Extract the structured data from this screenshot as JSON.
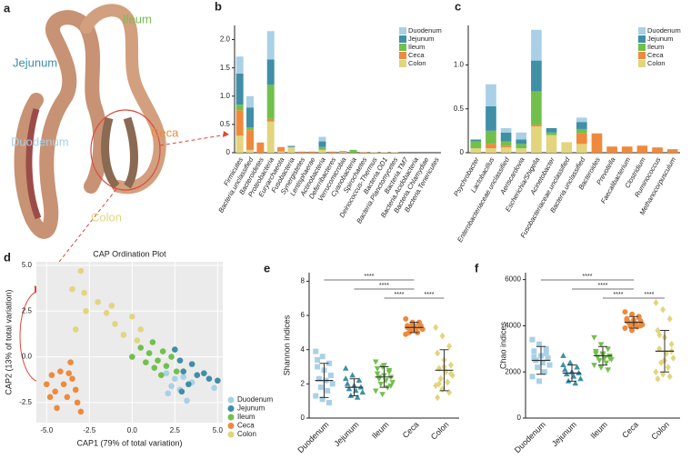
{
  "photo": {
    "panel": "a",
    "ileum": "Ileum",
    "jejunum": "Jejunum",
    "ceca": "Ceca",
    "duodenum": "Duodenum",
    "colon": "Colon"
  },
  "chart_data": [
    {
      "type": "stacked-bar",
      "panel": "b",
      "categories": [
        "Firmicutes",
        "Bacteria.unclassified",
        "Bacteroidetes",
        "Proteobacteria",
        "Euryarchaeota",
        "Fusobacteria",
        "Synergistetes",
        "Lentisphaerae",
        "Actinobacteria",
        "Deferribacteres",
        "Verrucomicrobia",
        "Cyanobacteria",
        "Spirochaetes",
        "Deinococcus-Thermus",
        "Bacteria.OD1",
        "Bacteria.Planctomycetes",
        "Bacteria.TM7",
        "Bacteria.Acidobacteria",
        "Bacteria.Chlamydiae",
        "Bacteria.Tenericutes"
      ],
      "series": [
        {
          "name": "Duodenum",
          "color": "#a9d0e6",
          "values": [
            0.3,
            0.2,
            0,
            0.5,
            0,
            0,
            0,
            0,
            0.08,
            0,
            0,
            0,
            0,
            0,
            0,
            0,
            0,
            0,
            0,
            0
          ]
        },
        {
          "name": "Jejunum",
          "color": "#3f8fa6",
          "values": [
            0.55,
            0.35,
            0,
            0.45,
            0,
            0.02,
            0,
            0,
            0.1,
            0,
            0,
            0,
            0,
            0,
            0,
            0,
            0,
            0,
            0,
            0
          ]
        },
        {
          "name": "Ileum",
          "color": "#72c04c",
          "values": [
            0.1,
            0.05,
            0,
            0.6,
            0,
            0,
            0,
            0,
            0.05,
            0,
            0,
            0.05,
            0,
            0,
            0,
            0,
            0,
            0,
            0,
            0
          ]
        },
        {
          "name": "Ceca",
          "color": "#ef8a3c",
          "values": [
            0.45,
            0.35,
            0.18,
            0.05,
            0.08,
            0,
            0.02,
            0.02,
            0,
            0.02,
            0.02,
            0,
            0.01,
            0,
            0,
            0,
            0,
            0,
            0,
            0
          ]
        },
        {
          "name": "Colon",
          "color": "#e2d57e",
          "values": [
            0.3,
            0.05,
            0,
            0.55,
            0.02,
            0.1,
            0,
            0,
            0.05,
            0,
            0.01,
            0,
            0,
            0.01,
            0.01,
            0.01,
            0,
            0,
            0,
            0
          ]
        }
      ],
      "ylim": [
        0,
        2.25
      ],
      "yticks": [
        0,
        0.5,
        {
          "value": 1,
          "label": "1.0"
        },
        1.5,
        {
          "value": 2,
          "label": "2.0"
        }
      ]
    },
    {
      "type": "stacked-bar",
      "panel": "c",
      "categories": [
        "Psychrobacter",
        "Lactobacillus",
        "Enterobacteriaceae.unclassified",
        "Aeriscardovia",
        "Escherichia/Shigella",
        "Acinetobacter",
        "Fusobacteriaceae.unclassified",
        "Bacteria.unclassified",
        "Bacteroides",
        "Prevotella",
        "Faecalibacterium",
        "Clostridium",
        "Ruminococcus",
        "Methanocorpusculum"
      ],
      "series": [
        {
          "name": "Duodenum",
          "color": "#a9d0e6",
          "values": [
            0,
            0.25,
            0.05,
            0.08,
            0.35,
            0,
            0,
            0.05,
            0,
            0,
            0,
            0,
            0,
            0
          ]
        },
        {
          "name": "Jejunum",
          "color": "#3f8fa6",
          "values": [
            0.02,
            0.28,
            0.1,
            0.05,
            0.35,
            0.05,
            0,
            0.08,
            0,
            0,
            0,
            0,
            0,
            0
          ]
        },
        {
          "name": "Ileum",
          "color": "#72c04c",
          "values": [
            0.08,
            0.15,
            0.05,
            0.05,
            0.38,
            0.03,
            0,
            0.05,
            0,
            0,
            0,
            0,
            0,
            0
          ]
        },
        {
          "name": "Ceca",
          "color": "#ef8a3c",
          "values": [
            0,
            0.05,
            0.02,
            0,
            0.02,
            0,
            0,
            0.12,
            0.22,
            0.07,
            0.07,
            0.08,
            0.06,
            0.04
          ]
        },
        {
          "name": "Colon",
          "color": "#e2d57e",
          "values": [
            0.05,
            0.05,
            0.06,
            0.05,
            0.3,
            0.2,
            0.12,
            0.1,
            0,
            0,
            0,
            0,
            0,
            0
          ]
        }
      ],
      "ylim": [
        0,
        1.45
      ],
      "yticks": [
        0,
        0.5,
        {
          "value": 1,
          "label": "1.0"
        }
      ]
    },
    {
      "type": "scatter",
      "panel": "d",
      "title": "CAP Ordination Plot",
      "xlabel": "CAP1 (79% of total variation)",
      "ylabel": "CAP2 (13% of total variation)",
      "series": [
        {
          "name": "Duodenum",
          "color": "#a9d0e6",
          "x": [
            2.0,
            2.3,
            2.5,
            2.8,
            3.2,
            3.5,
            2.1,
            4.8,
            3.0
          ],
          "y": [
            -0.9,
            -1.6,
            -1.2,
            -1.8,
            -2.4,
            -1.4,
            -2.0,
            -1.7,
            -1.1
          ]
        },
        {
          "name": "Jejunum",
          "color": "#3f8fa6",
          "x": [
            2.5,
            2.8,
            3.0,
            3.5,
            3.8,
            4.2,
            4.5,
            5.0,
            3.3,
            2.9
          ],
          "y": [
            0.4,
            -0.2,
            -0.8,
            -0.4,
            -1.0,
            -0.9,
            -1.2,
            -1.3,
            -1.5,
            -1.9
          ]
        },
        {
          "name": "Ileum",
          "color": "#72c04c",
          "x": [
            0.5,
            1.0,
            1.2,
            1.5,
            1.8,
            2.0,
            2.3,
            0.8,
            1.7,
            2.6,
            0,
            1.3
          ],
          "y": [
            0.5,
            0.2,
            0.8,
            -0.2,
            0.3,
            -0.5,
            0,
            -0.3,
            -1.0,
            -0.8,
            0,
            -0.6
          ]
        },
        {
          "name": "Ceca",
          "color": "#ef8a3c",
          "x": [
            -5.0,
            -4.7,
            -4.5,
            -4.2,
            -4.0,
            -3.8,
            -3.6,
            -3.5,
            -3.2,
            -3.0,
            -4.4,
            -3.7,
            -4.8,
            -3.3
          ],
          "y": [
            -1.5,
            -1.0,
            -1.9,
            -0.8,
            -1.5,
            -2.2,
            -0.3,
            -1.2,
            -2.5,
            -3.0,
            -2.8,
            -0.9,
            -2.2,
            -1.8
          ]
        },
        {
          "name": "Colon",
          "color": "#e2d57e",
          "x": [
            -3.5,
            -3.0,
            -2.8,
            -2.0,
            -1.5,
            -2.7,
            -1.0,
            0,
            -0.5,
            0.3,
            -3.3,
            -1.2,
            0.5
          ],
          "y": [
            3.7,
            4.7,
            3.5,
            3.0,
            2.4,
            2.5,
            1.8,
            2.2,
            1.2,
            0.9,
            1.5,
            2.8,
            1.5
          ]
        }
      ],
      "xlim": [
        -5.6,
        5.3
      ],
      "ylim": [
        -3.6,
        5.2
      ],
      "xticks": [
        {
          "value": -5,
          "label": "-5.0"
        },
        -2.5,
        {
          "value": 0,
          "label": "0.0"
        },
        2.5,
        {
          "value": 5,
          "label": "5.0"
        }
      ],
      "yticks": [
        -2.5,
        {
          "value": 0,
          "label": "0.0"
        },
        2.5,
        {
          "value": 5,
          "label": "5.0"
        }
      ],
      "grid": true
    },
    {
      "type": "strip",
      "panel": "e",
      "ylabel": "Shannon indices",
      "categories": [
        "Duodenum",
        "Jejunum",
        "Ileum",
        "Ceca",
        "Colon"
      ],
      "series": [
        {
          "color": "#a9d0e6",
          "marker": "square",
          "values": [
            3.9,
            3.6,
            3.2,
            3.0,
            2.8,
            2.5,
            2.3,
            2.2,
            2.0,
            1.8,
            1.6,
            1.3,
            1.1,
            0.9,
            3.4
          ],
          "mean": 2.2,
          "sd": 1.0
        },
        {
          "color": "#3f8fa6",
          "marker": "triangle",
          "values": [
            2.9,
            2.5,
            2.2,
            2.0,
            1.9,
            1.8,
            1.7,
            1.6,
            1.5,
            1.3,
            1.2,
            2.3
          ],
          "mean": 1.8,
          "sd": 0.5
        },
        {
          "color": "#72c04c",
          "marker": "triangle-down",
          "values": [
            3.3,
            3.0,
            2.8,
            2.6,
            2.5,
            2.4,
            2.3,
            2.2,
            2.1,
            2.0,
            1.8,
            1.6,
            1.4,
            2.7,
            2.9,
            3.1,
            1.9,
            2.4
          ],
          "mean": 2.4,
          "sd": 0.6
        },
        {
          "color": "#ef8a3c",
          "marker": "circle",
          "values": [
            5.8,
            5.6,
            5.5,
            5.4,
            5.4,
            5.3,
            5.3,
            5.2,
            5.2,
            5.1,
            5.0,
            4.9,
            5.5,
            5.6,
            5.3,
            5.2,
            5.4,
            5.0
          ],
          "mean": 5.3,
          "sd": 0.3
        },
        {
          "color": "#e2d57e",
          "marker": "diamond",
          "values": [
            5.3,
            4.8,
            4.2,
            3.8,
            3.4,
            3.1,
            2.9,
            2.7,
            2.5,
            2.3,
            2.1,
            1.9,
            1.7,
            1.5,
            1.2,
            3.0,
            2.6,
            2.0
          ],
          "mean": 2.8,
          "sd": 1.2
        }
      ],
      "ylim": [
        0,
        8.5
      ],
      "yticks": [
        0,
        2,
        4,
        6,
        8
      ],
      "significance": [
        {
          "from": "Duodenum",
          "to": "Ceca",
          "label": "****"
        },
        {
          "from": "Jejunum",
          "to": "Ceca",
          "label": "****"
        },
        {
          "from": "Ileum",
          "to": "Ceca",
          "label": "****"
        },
        {
          "from": "Ceca",
          "to": "Colon",
          "label": "****"
        }
      ]
    },
    {
      "type": "strip",
      "panel": "f",
      "ylabel": "Chao indices",
      "categories": [
        "Duodenum",
        "Jejunum",
        "Ileum",
        "Ceca",
        "Colon"
      ],
      "series": [
        {
          "color": "#a9d0e6",
          "marker": "square",
          "values": [
            3400,
            3200,
            3000,
            2900,
            2700,
            2600,
            2500,
            2400,
            2300,
            2200,
            2000,
            1800,
            1600,
            2800,
            2650
          ],
          "mean": 2500,
          "sd": 600
        },
        {
          "color": "#3f8fa6",
          "marker": "triangle",
          "values": [
            2700,
            2400,
            2200,
            2100,
            2000,
            1950,
            1900,
            1800,
            1700,
            1600,
            1500,
            2300
          ],
          "mean": 1950,
          "sd": 350
        },
        {
          "color": "#72c04c",
          "marker": "triangle-down",
          "values": [
            3500,
            3200,
            3000,
            2900,
            2800,
            2700,
            2650,
            2600,
            2550,
            2500,
            2400,
            2300,
            2200,
            2100,
            2800,
            2750,
            2600
          ],
          "mean": 2700,
          "sd": 400
        },
        {
          "color": "#ef8a3c",
          "marker": "circle",
          "values": [
            4600,
            4500,
            4400,
            4300,
            4250,
            4200,
            4150,
            4100,
            4050,
            4000,
            3950,
            3900,
            3800,
            4350,
            4250,
            4100,
            4000
          ],
          "mean": 4150,
          "sd": 250
        },
        {
          "color": "#e2d57e",
          "marker": "diamond",
          "values": [
            5000,
            4700,
            4300,
            3800,
            3500,
            3200,
            3000,
            2800,
            2600,
            2400,
            2200,
            2000,
            1900,
            1800,
            1700,
            2500,
            2900,
            3600
          ],
          "mean": 2900,
          "sd": 900
        }
      ],
      "ylim": [
        0,
        6300
      ],
      "yticks": [
        0,
        2000,
        4000,
        6000
      ],
      "significance": [
        {
          "from": "Duodenum",
          "to": "Ceca",
          "label": "****"
        },
        {
          "from": "Jejunum",
          "to": "Ceca",
          "label": "****"
        },
        {
          "from": "Ileum",
          "to": "Ceca",
          "label": "****"
        },
        {
          "from": "Ceca",
          "to": "Colon",
          "label": "****"
        }
      ]
    }
  ]
}
